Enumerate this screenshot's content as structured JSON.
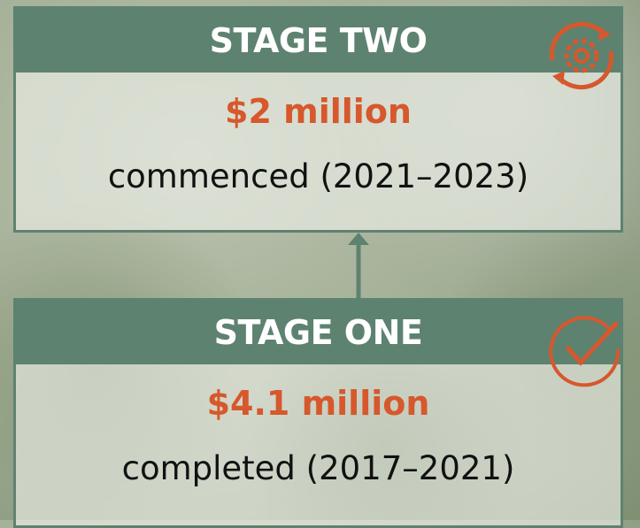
{
  "stages": [
    {
      "title": "STAGE TWO",
      "amount": "$2 million",
      "status": "commenced (2021–2023)"
    },
    {
      "title": "STAGE ONE",
      "amount": "$4.1 million",
      "status": "completed (2017–2021)"
    }
  ]
}
